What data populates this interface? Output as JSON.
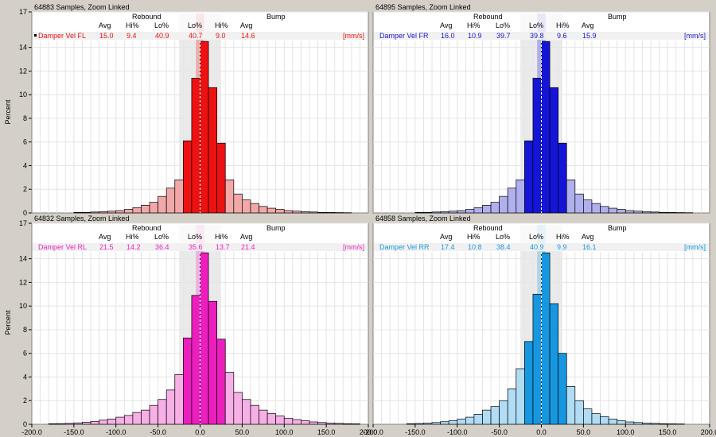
{
  "axis": {
    "ylabel": "Percent",
    "yticks": [
      "0",
      "2",
      "4",
      "6",
      "8",
      "10",
      "12",
      "14",
      "17"
    ],
    "xticks": [
      "-200.0",
      "-150.0",
      "-100.0",
      "-50.0",
      "0.0",
      "50.0",
      "100.0",
      "150.0",
      "200.0"
    ],
    "xticks_right": [
      "-200.0",
      "-150.0",
      "-100.0",
      "-50.0",
      "0.0",
      "50.0",
      "100.0",
      "150.0",
      "200.0"
    ]
  },
  "stat_headers": {
    "rebound": "Rebound",
    "bump": "Bump",
    "cols": [
      "Avg",
      "Hi%",
      "Lo%",
      "Lo%",
      "Hi%",
      "Avg"
    ]
  },
  "chart_data": [
    {
      "type": "bar",
      "header": "64883 Samples, Zoom Linked",
      "series_label": "Damper Vel FL",
      "unit": "[mm/s]",
      "stats": [
        "15.0",
        "9.4",
        "40.9",
        "40.7",
        "9.0",
        "14.6"
      ],
      "color": "#ee1111",
      "light_color": "#f2a8a8",
      "ylim": [
        0,
        17
      ],
      "xlim": [
        -200,
        200
      ],
      "bin_width": 10,
      "bin_starts": [
        -150,
        -140,
        -130,
        -120,
        -110,
        -100,
        -90,
        -80,
        -70,
        -60,
        -50,
        -40,
        -30,
        -20,
        -10,
        0,
        10,
        20,
        30,
        40,
        50,
        60,
        70,
        80,
        90,
        100,
        110,
        120,
        130,
        140,
        150,
        160,
        170
      ],
      "values": [
        0.05,
        0.05,
        0.08,
        0.1,
        0.15,
        0.2,
        0.3,
        0.45,
        0.65,
        0.9,
        1.4,
        2.1,
        2.8,
        6.1,
        11.4,
        14.5,
        10.6,
        5.9,
        2.8,
        1.6,
        1.1,
        0.8,
        0.55,
        0.4,
        0.3,
        0.2,
        0.15,
        0.1,
        0.08,
        0.05,
        0.04,
        0.03,
        0.02
      ]
    },
    {
      "type": "bar",
      "header": "64895 Samples, Zoom Linked",
      "series_label": "Damper Vel FR",
      "unit": "[mm/s]",
      "stats": [
        "16.0",
        "10.9",
        "39.7",
        "39.8",
        "9.6",
        "15.9"
      ],
      "color": "#1515d8",
      "light_color": "#b0b0ee",
      "ylim": [
        0,
        17
      ],
      "xlim": [
        -200,
        200
      ],
      "bin_width": 10,
      "bin_starts": [
        -150,
        -140,
        -130,
        -120,
        -110,
        -100,
        -90,
        -80,
        -70,
        -60,
        -50,
        -40,
        -30,
        -20,
        -10,
        0,
        10,
        20,
        30,
        40,
        50,
        60,
        70,
        80,
        90,
        100,
        110,
        120,
        130,
        140,
        150,
        160,
        170
      ],
      "values": [
        0.05,
        0.05,
        0.08,
        0.1,
        0.15,
        0.2,
        0.3,
        0.45,
        0.65,
        0.9,
        1.4,
        2.1,
        2.8,
        6.1,
        11.4,
        14.5,
        10.6,
        5.9,
        2.8,
        1.6,
        1.1,
        0.8,
        0.55,
        0.4,
        0.3,
        0.2,
        0.15,
        0.1,
        0.08,
        0.05,
        0.04,
        0.03,
        0.02
      ]
    },
    {
      "type": "bar",
      "header": "64832 Samples, Zoom Linked",
      "series_label": "Damper Vel RL",
      "unit": "[mm/s]",
      "stats": [
        "21.5",
        "14.2",
        "36.4",
        "35.6",
        "13.7",
        "21.4"
      ],
      "color": "#ec1fbe",
      "light_color": "#f6b0e6",
      "ylim": [
        0,
        17
      ],
      "xlim": [
        -200,
        200
      ],
      "bin_width": 10,
      "bin_starts": [
        -180,
        -170,
        -160,
        -150,
        -140,
        -130,
        -120,
        -110,
        -100,
        -90,
        -80,
        -70,
        -60,
        -50,
        -40,
        -30,
        -20,
        -10,
        0,
        10,
        20,
        30,
        40,
        50,
        60,
        70,
        80,
        90,
        100,
        110,
        120,
        130,
        140,
        150,
        160,
        170,
        180
      ],
      "values": [
        0.05,
        0.06,
        0.08,
        0.12,
        0.18,
        0.25,
        0.35,
        0.45,
        0.6,
        0.75,
        1.0,
        1.2,
        1.6,
        2.1,
        2.9,
        4.2,
        7.3,
        10.9,
        14.5,
        10.4,
        7.2,
        4.4,
        2.7,
        2.1,
        1.6,
        1.2,
        0.9,
        0.7,
        0.5,
        0.4,
        0.3,
        0.2,
        0.15,
        0.1,
        0.08,
        0.05,
        0.04
      ]
    },
    {
      "type": "bar",
      "header": "64858 Samples, Zoom Linked",
      "series_label": "Damper Vel RR",
      "unit": "[mm/s]",
      "stats": [
        "17.4",
        "10.8",
        "38.4",
        "40.9",
        "9.9",
        "16.1"
      ],
      "color": "#1797e0",
      "light_color": "#b0dcf4",
      "ylim": [
        0,
        17
      ],
      "xlim": [
        -200,
        200
      ],
      "bin_width": 10,
      "bin_starts": [
        -160,
        -150,
        -140,
        -130,
        -120,
        -110,
        -100,
        -90,
        -80,
        -70,
        -60,
        -50,
        -40,
        -30,
        -20,
        -10,
        0,
        10,
        20,
        30,
        40,
        50,
        60,
        70,
        80,
        90,
        100,
        110,
        120,
        130,
        140,
        150,
        160
      ],
      "values": [
        0.05,
        0.07,
        0.1,
        0.15,
        0.22,
        0.3,
        0.45,
        0.6,
        0.85,
        1.2,
        1.5,
        2.0,
        3.0,
        4.7,
        7.0,
        11.0,
        14.5,
        10.2,
        6.0,
        3.2,
        2.0,
        1.3,
        0.9,
        0.65,
        0.45,
        0.3,
        0.2,
        0.15,
        0.1,
        0.08,
        0.05,
        0.04,
        0.03
      ]
    }
  ]
}
